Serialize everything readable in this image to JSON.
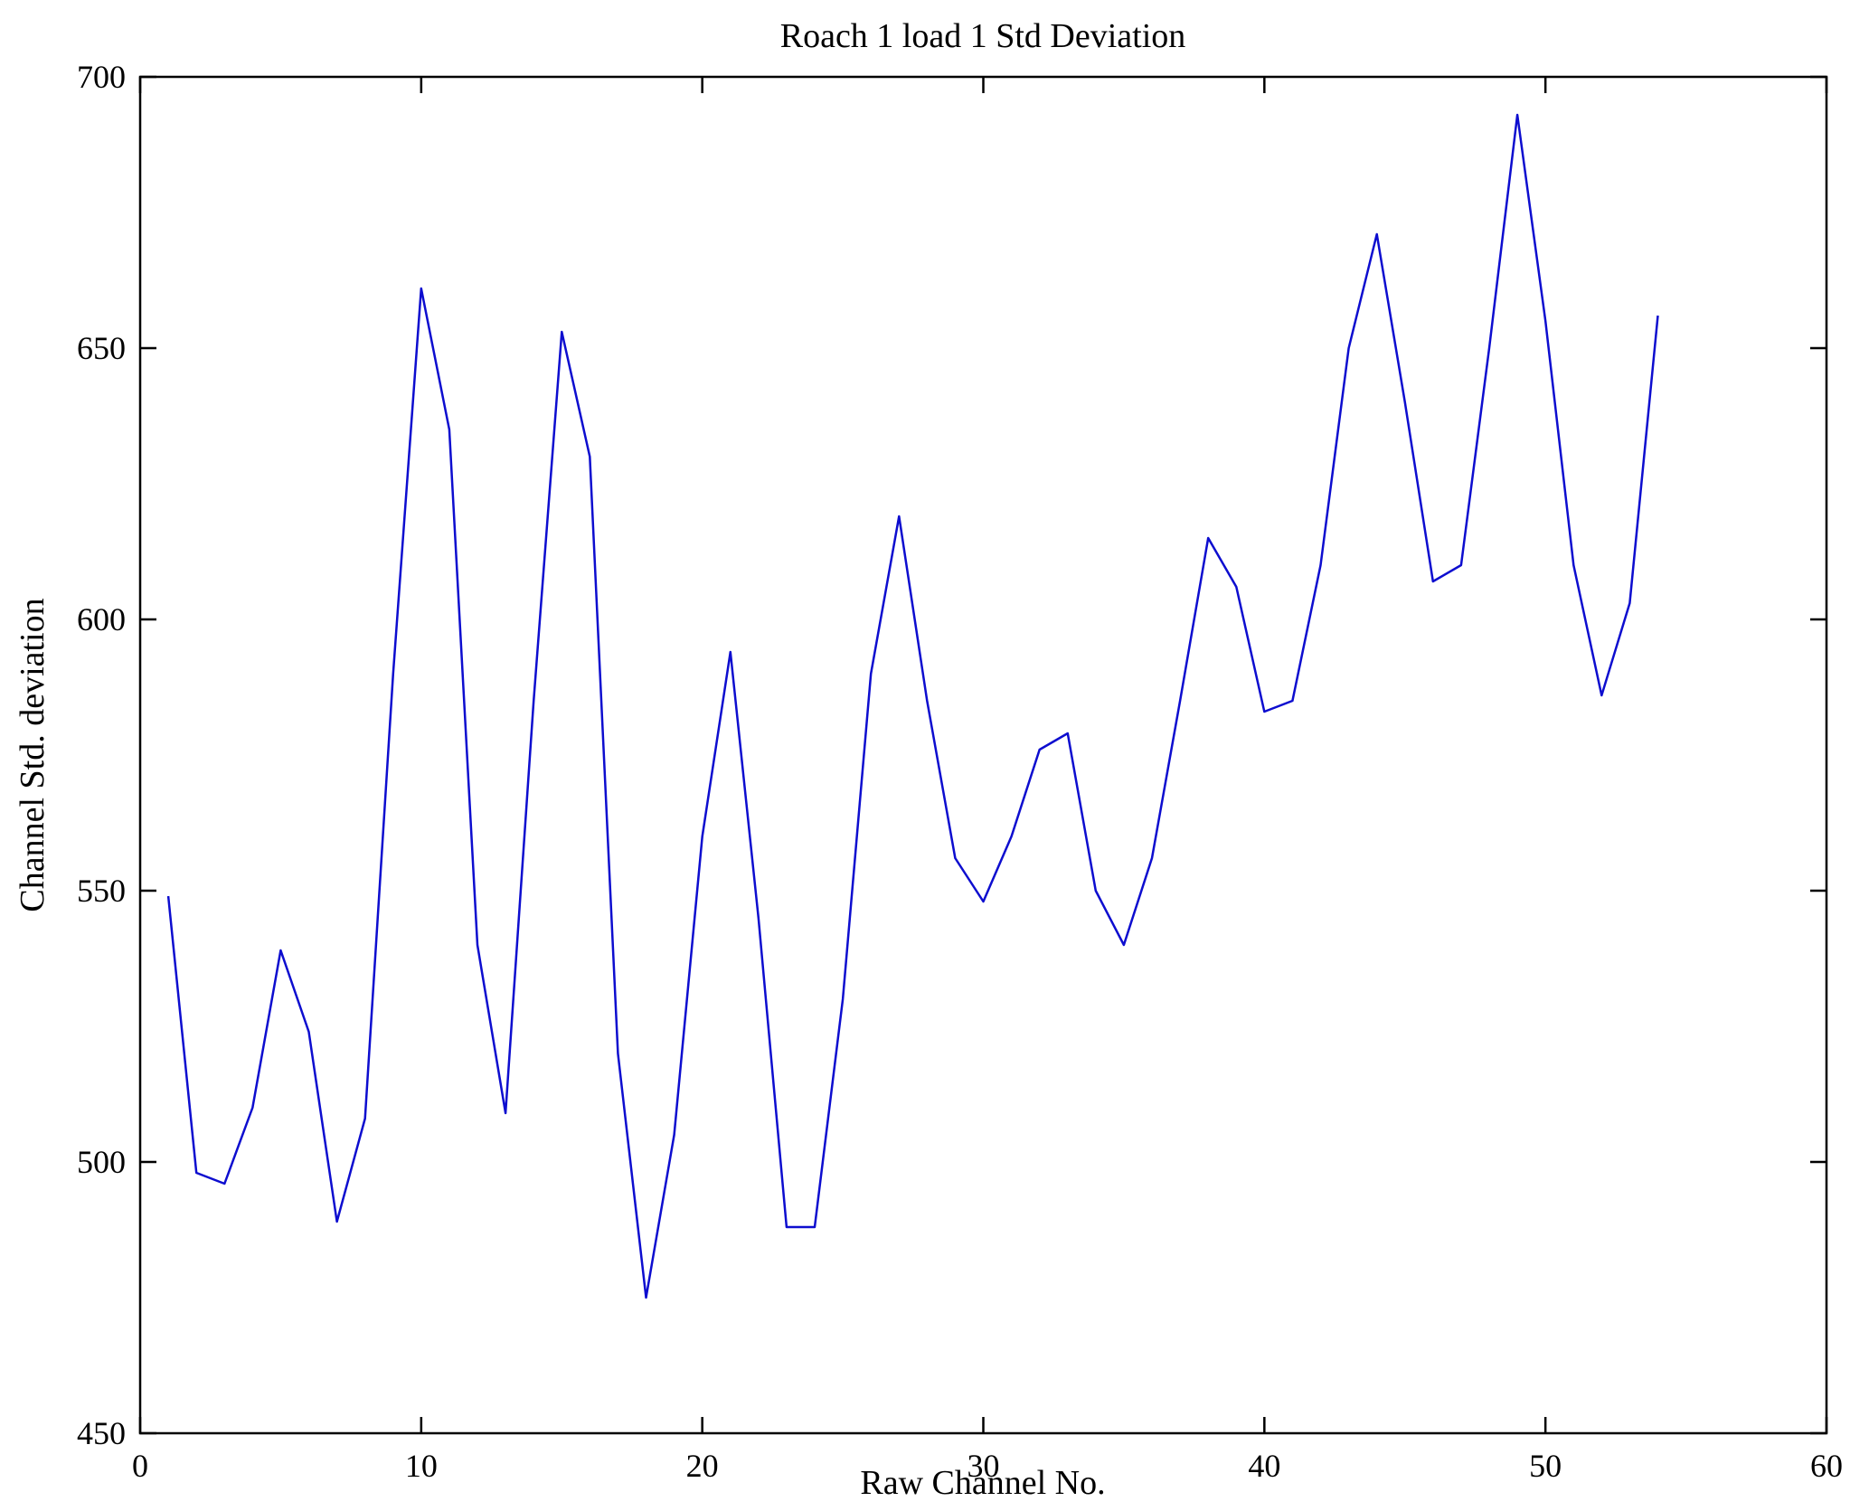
{
  "chart_data": {
    "type": "line",
    "title": "Roach 1 load 1 Std Deviation",
    "xlabel": "Raw Channel No.",
    "ylabel": "Channel Std. deviation",
    "xlim": [
      0,
      60
    ],
    "ylim": [
      450,
      700
    ],
    "xticks": [
      0,
      10,
      20,
      30,
      40,
      50,
      60
    ],
    "yticks": [
      450,
      500,
      550,
      600,
      650,
      700
    ],
    "grid": false,
    "legend": "none",
    "line_color": "#0d0dcf",
    "axis_color": "#000000",
    "x": [
      1,
      2,
      3,
      4,
      5,
      6,
      7,
      8,
      9,
      10,
      11,
      12,
      13,
      14,
      15,
      16,
      17,
      18,
      19,
      20,
      21,
      22,
      23,
      24,
      25,
      26,
      27,
      28,
      29,
      30,
      31,
      32,
      33,
      34,
      35,
      36,
      37,
      38,
      39,
      40,
      41,
      42,
      43,
      44,
      45,
      46,
      47,
      48,
      49,
      50,
      51,
      52,
      53,
      54
    ],
    "values": [
      549,
      498,
      496,
      510,
      539,
      524,
      489,
      508,
      590,
      661,
      635,
      540,
      509,
      585,
      653,
      630,
      520,
      475,
      505,
      560,
      594,
      545,
      488,
      488,
      530,
      590,
      619,
      585,
      556,
      548,
      560,
      576,
      579,
      550,
      540,
      556,
      585,
      615,
      606,
      583,
      585,
      610,
      650,
      671,
      640,
      607,
      610,
      650,
      693,
      655,
      610,
      586,
      603,
      656
    ]
  }
}
